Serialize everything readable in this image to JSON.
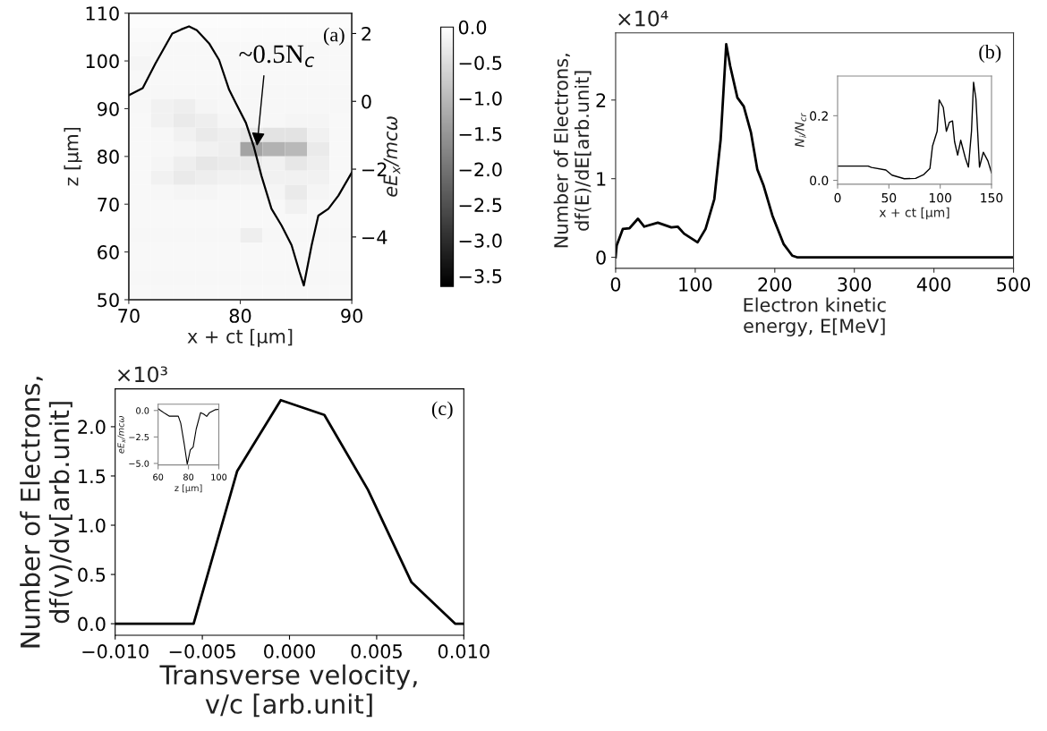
{
  "chart_data": [
    {
      "type": "heatmap",
      "tick_labels": false,
      "categories": [
        null,
        null,
        null,
        null,
        null,
        null,
        null,
        null,
        null,
        null
      ],
      "y_categories": [
        null,
        null,
        null,
        null,
        null,
        null,
        null,
        null,
        null,
        null,
        null,
        null,
        null,
        null,
        null,
        null,
        null,
        null,
        null,
        null
      ],
      "cells": [
        [
          -0.05,
          -0.05,
          -0.05,
          -0.05,
          -0.05,
          -0.05,
          -0.05,
          -0.05,
          -0.05,
          -0.05
        ],
        [
          -0.08,
          -0.08,
          -0.08,
          -0.08,
          -0.08,
          -0.08,
          -0.08,
          -0.08,
          -0.08,
          -0.08
        ],
        [
          -0.1,
          -0.1,
          -0.1,
          -0.1,
          -0.1,
          -0.1,
          -0.1,
          -0.1,
          -0.1,
          -0.1
        ],
        [
          -0.15,
          -0.1,
          -0.1,
          -0.1,
          -0.1,
          -0.1,
          -0.1,
          -0.1,
          -0.1,
          -0.1
        ],
        [
          -0.1,
          -0.1,
          -0.1,
          -0.1,
          -0.1,
          -0.1,
          -0.1,
          -0.1,
          -0.1,
          -0.1
        ],
        [
          -0.12,
          -0.12,
          -0.12,
          -0.12,
          -0.12,
          -0.12,
          -0.12,
          -0.12,
          -0.12,
          -0.12
        ],
        [
          -0.12,
          -0.2,
          -0.25,
          -0.15,
          -0.12,
          -0.12,
          -0.12,
          -0.12,
          -0.12,
          -0.12
        ],
        [
          -0.1,
          -0.2,
          -0.3,
          -0.25,
          -0.15,
          -0.12,
          -0.12,
          -0.15,
          -0.15,
          -0.1
        ],
        [
          -0.1,
          -0.12,
          -0.2,
          -0.3,
          -0.25,
          -0.35,
          -0.4,
          -0.4,
          -0.2,
          -0.1
        ],
        [
          -0.1,
          -0.12,
          -0.15,
          -0.2,
          -0.25,
          -1.3,
          -1.1,
          -1.0,
          -0.3,
          -0.1
        ],
        [
          -0.1,
          -0.15,
          -0.25,
          -0.35,
          -0.3,
          -0.3,
          -0.2,
          -0.35,
          -0.25,
          -0.1
        ],
        [
          -0.1,
          -0.2,
          -0.3,
          -0.25,
          -0.2,
          -0.2,
          -0.2,
          -0.2,
          -0.2,
          -0.1
        ],
        [
          -0.1,
          -0.12,
          -0.15,
          -0.15,
          -0.12,
          -0.12,
          -0.15,
          -0.3,
          -0.15,
          -0.1
        ],
        [
          -0.1,
          -0.1,
          -0.1,
          -0.1,
          -0.1,
          -0.1,
          -0.1,
          -0.2,
          -0.1,
          -0.1
        ],
        [
          -0.1,
          -0.1,
          -0.1,
          -0.1,
          -0.1,
          -0.1,
          -0.1,
          -0.1,
          -0.1,
          -0.1
        ],
        [
          -0.12,
          -0.12,
          -0.12,
          -0.12,
          -0.12,
          -0.25,
          -0.12,
          -0.12,
          -0.12,
          -0.12
        ],
        [
          -0.1,
          -0.1,
          -0.1,
          -0.1,
          -0.1,
          -0.1,
          -0.1,
          -0.1,
          -0.1,
          -0.1
        ],
        [
          -0.1,
          -0.1,
          -0.1,
          -0.1,
          -0.1,
          -0.1,
          -0.1,
          -0.1,
          -0.1,
          -0.1
        ],
        [
          -0.12,
          -0.12,
          -0.12,
          -0.12,
          -0.12,
          -0.12,
          -0.12,
          -0.12,
          -0.12,
          -0.12
        ],
        [
          -0.1,
          -0.1,
          -0.1,
          -0.1,
          -0.1,
          -0.1,
          -0.1,
          -0.1,
          -0.1,
          -0.1
        ]
      ],
      "clim": [
        -3.65,
        0
      ],
      "cticks": [
        {
          "value": 0,
          "label": "0.0"
        },
        {
          "value": -0.5,
          "label": "−0.5"
        },
        {
          "value": -1.0,
          "label": "−1.0"
        },
        {
          "value": -1.5,
          "label": "−1.5"
        },
        {
          "value": -2.0,
          "label": "−2.0"
        },
        {
          "value": -2.5,
          "label": "−2.5"
        },
        {
          "value": -3.0,
          "label": "−3.0"
        },
        {
          "value": -3.5,
          "label": "−3.5"
        }
      ]
    },
    {
      "type": "line",
      "xlabel": "x + ct [µm]",
      "ylabel": "z [µm]",
      "y2label": "eE$_{x}$/mcω",
      "xlim": [
        70,
        90
      ],
      "xticks": [
        70,
        80,
        90
      ],
      "ylim": [
        50,
        110
      ],
      "yticks": [
        50,
        60,
        70,
        80,
        90,
        100,
        110
      ],
      "y2lim": [
        -5.85,
        2.6
      ],
      "y2ticks": [
        2,
        0,
        {
          "value": -2,
          "label": "−2"
        },
        {
          "value": -4,
          "label": "−4"
        }
      ],
      "series": [
        {
          "type": "line",
          "axis": "y2",
          "color": "#000000",
          "x": [
            70,
            71.25,
            72.4,
            73.9,
            74.7,
            75.4,
            76.1,
            77.2,
            78.1,
            79.0,
            79.6,
            80.5,
            81.2,
            81.9,
            82.8,
            83.7,
            84.6,
            85.3,
            85.7,
            86.4,
            87.0,
            87.9,
            88.8,
            90
          ],
          "values": [
            0.18,
            0.39,
            1.12,
            2.0,
            2.12,
            2.21,
            2.1,
            1.71,
            1.22,
            0.34,
            -0.05,
            -0.63,
            -1.32,
            -2.2,
            -3.17,
            -3.66,
            -4.24,
            -5.02,
            -5.43,
            -4.24,
            -3.37,
            -3.17,
            -2.78,
            -2.1
          ]
        }
      ],
      "annotations": [
        "(a)",
        {
          "text": "~0.5N$_{c}$",
          "x": 81.5,
          "y": 82.2
        }
      ]
    },
    {
      "type": "line",
      "xlabel": "Electron kinetic\nenergy, E[MeV]",
      "ylabel": "Number of Electrons,\ndf(E)/dE[arb.unit]",
      "xlim": [
        0,
        500
      ],
      "xticks": [
        0,
        100,
        200,
        300,
        400,
        500
      ],
      "ylim": [
        -0.14,
        2.854
      ],
      "yticks": [
        0,
        1,
        2
      ],
      "series": [
        {
          "color": "#000000",
          "x": [
            0,
            1.25,
            9,
            17.5,
            28,
            36,
            53,
            70,
            78,
            86,
            103,
            113,
            124,
            132,
            139,
            144,
            153,
            161,
            170,
            178,
            186,
            197,
            211,
            222,
            228,
            500
          ],
          "values": [
            0,
            0.148,
            0.36,
            0.37,
            0.49,
            0.39,
            0.44,
            0.38,
            0.39,
            0.3,
            0.19,
            0.36,
            0.74,
            1.5,
            2.71,
            2.43,
            2.03,
            1.92,
            1.59,
            1.12,
            0.91,
            0.53,
            0.17,
            0.02,
            0,
            0
          ]
        }
      ],
      "annotations": [
        "(b)",
        "×10⁴"
      ]
    },
    {
      "type": "line",
      "xlabel": "x + ct [µm]",
      "ylabel": "N$_{i}$/N$_{cr}$",
      "xlim": [
        0,
        150
      ],
      "xticks": [
        0,
        50,
        100,
        150
      ],
      "ylim": [
        -0.012,
        0.323
      ],
      "yticks": [
        {
          "value": 0,
          "label": "0.0"
        },
        0.2
      ],
      "series": [
        {
          "color": "#000000",
          "x": [
            0,
            29.8,
            33,
            47,
            53,
            65,
            76,
            84,
            90,
            92.5,
            97,
            99,
            103,
            106,
            109,
            112,
            114,
            117,
            120,
            124.6,
            127.5,
            130.5,
            132.5,
            134.8,
            138.3,
            142,
            146.5,
            150
          ],
          "values": [
            0.044,
            0.044,
            0.04,
            0.032,
            0.016,
            0.005,
            0.006,
            0.018,
            0.037,
            0.106,
            0.152,
            0.249,
            0.226,
            0.152,
            0.18,
            0.184,
            0.12,
            0.078,
            0.124,
            0.068,
            0.041,
            0.152,
            0.304,
            0.253,
            0.041,
            0.087,
            0.06,
            0.023
          ]
        }
      ]
    },
    {
      "type": "line",
      "xlabel": "Transverse velocity,\nv/c [arb.unit]",
      "ylabel": "Number of Electrons,\ndf(v)/dv[arb.unit]",
      "xlim": [
        -0.01,
        0.01
      ],
      "xticks": [
        {
          "value": -0.01,
          "label": "−0.010"
        },
        {
          "value": -0.005,
          "label": "−0.005"
        },
        {
          "value": 0,
          "label": "0.000"
        },
        {
          "value": 0.005,
          "label": "0.005"
        },
        {
          "value": 0.01,
          "label": "0.010"
        }
      ],
      "ylim": [
        -0.117,
        2.384
      ],
      "yticks": [
        {
          "value": 0,
          "label": "0.0"
        },
        0.5,
        {
          "value": 1,
          "label": "1.0"
        },
        1.5,
        {
          "value": 2,
          "label": "2.0"
        }
      ],
      "series": [
        {
          "color": "#000000",
          "x": [
            -0.01,
            -0.0055,
            -0.003,
            -0.0005,
            0.002,
            0.0045,
            0.007,
            0.0095,
            0.01
          ],
          "values": [
            0,
            0,
            1.55,
            2.27,
            2.12,
            1.36,
            0.42,
            0,
            0
          ]
        }
      ],
      "annotations": [
        "(c)",
        "×10³"
      ]
    },
    {
      "type": "line",
      "xlabel": "z [µm]",
      "ylabel": "eE$_{x}$/mcω",
      "xlim": [
        60,
        100
      ],
      "xticks": [
        60,
        80,
        100
      ],
      "ylim": [
        -5.14,
        0.59
      ],
      "yticks": [
        {
          "value": 0,
          "label": "0.0"
        },
        {
          "value": -2.5,
          "label": "−2.5"
        },
        {
          "value": -5.0,
          "label": "−5.0"
        }
      ],
      "series": [
        {
          "color": "#000000",
          "x": [
            60,
            61.6,
            64.5,
            67.5,
            73.3,
            74.9,
            77.2,
            79.2,
            81.2,
            83.1,
            85.1,
            88,
            90,
            92,
            93.9,
            97.8,
            100
          ],
          "values": [
            0.17,
            0,
            -0.28,
            -0.54,
            -0.54,
            -1.19,
            -3.16,
            -5.08,
            -3.73,
            -3.45,
            -1.75,
            -0.2,
            -0.34,
            -0.56,
            -0.2,
            0.08,
            0.11
          ]
        }
      ]
    }
  ]
}
